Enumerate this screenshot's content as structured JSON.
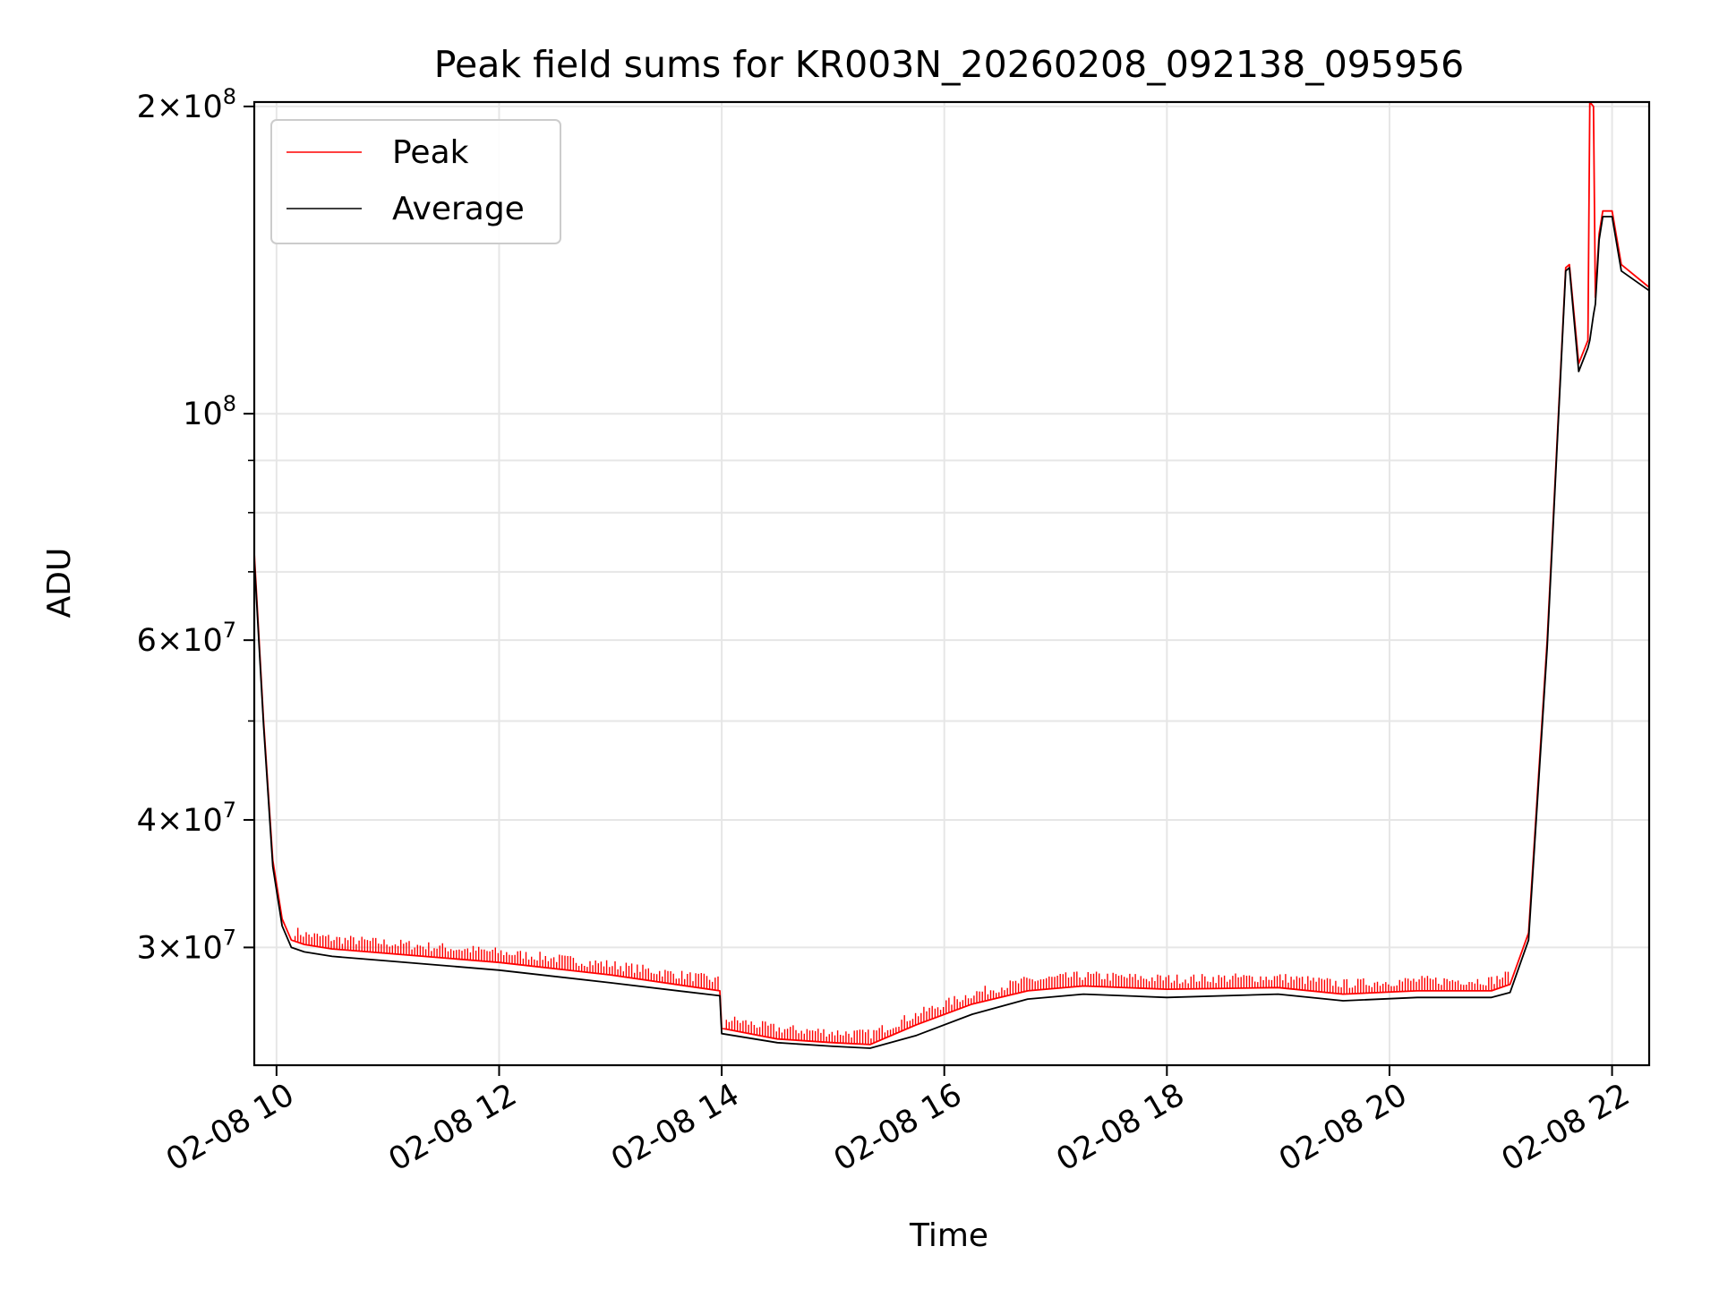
{
  "chart_data": {
    "type": "line",
    "title": "Peak field sums for KR003N_20260208_092138_095956",
    "xlabel": "Time",
    "ylabel": "ADU",
    "x_range": [
      "2026-02-08 09:48",
      "2026-02-08 22:20"
    ],
    "y_range": [
      23000000,
      202000000
    ],
    "y_scale": "log",
    "grid": true,
    "legend_position": "top-left",
    "x_ticks": [
      "2026-02-08 10:00",
      "2026-02-08 12:00",
      "2026-02-08 14:00",
      "2026-02-08 16:00",
      "2026-02-08 18:00",
      "2026-02-08 20:00",
      "2026-02-08 22:00"
    ],
    "x_tick_labels": [
      "02-08 10",
      "02-08 12",
      "02-08 14",
      "02-08 16",
      "02-08 18",
      "02-08 20",
      "02-08 22"
    ],
    "y_major_ticks": [
      {
        "value": 30000000,
        "mantissa": "3",
        "exp": "7"
      },
      {
        "value": 40000000,
        "mantissa": "4",
        "exp": "7"
      },
      {
        "value": 60000000,
        "mantissa": "6",
        "exp": "7"
      },
      {
        "value": 100000000,
        "mantissa": "",
        "exp": "8"
      },
      {
        "value": 200000000,
        "mantissa": "2",
        "exp": "8"
      }
    ],
    "y_minor_gridlines": [
      50000000,
      70000000,
      80000000,
      90000000
    ],
    "series": [
      {
        "name": "Peak",
        "color": "#ff0000",
        "spike_offset_fraction": 0.035,
        "x": [
          "2026-02-08 09:48",
          "2026-02-08 09:53",
          "2026-02-08 09:58",
          "2026-02-08 10:03",
          "2026-02-08 10:08",
          "2026-02-08 10:15",
          "2026-02-08 10:30",
          "2026-02-08 11:00",
          "2026-02-08 12:00",
          "2026-02-08 13:00",
          "2026-02-08 13:59",
          "2026-02-08 14:00",
          "2026-02-08 14:30",
          "2026-02-08 15:00",
          "2026-02-08 15:20",
          "2026-02-08 15:45",
          "2026-02-08 16:15",
          "2026-02-08 16:45",
          "2026-02-08 17:15",
          "2026-02-08 18:00",
          "2026-02-08 19:00",
          "2026-02-08 19:35",
          "2026-02-08 20:15",
          "2026-02-08 20:55",
          "2026-02-08 21:05",
          "2026-02-08 21:15",
          "2026-02-08 21:25",
          "2026-02-08 21:35",
          "2026-02-08 21:37",
          "2026-02-08 21:42",
          "2026-02-08 21:47",
          "2026-02-08 21:48",
          "2026-02-08 21:50",
          "2026-02-08 21:51",
          "2026-02-08 21:53",
          "2026-02-08 21:55",
          "2026-02-08 22:00",
          "2026-02-08 22:05",
          "2026-02-08 22:20"
        ],
        "y": [
          73000000,
          50000000,
          36500000,
          32000000,
          30500000,
          30200000,
          29900000,
          29600000,
          29000000,
          28200000,
          27200000,
          25000000,
          24400000,
          24200000,
          24100000,
          25200000,
          26400000,
          27200000,
          27500000,
          27300000,
          27400000,
          27000000,
          27200000,
          27200000,
          27600000,
          31000000,
          60000000,
          139000000,
          140000000,
          112000000,
          118000000,
          202000000,
          200000000,
          130000000,
          150000000,
          158000000,
          158000000,
          140000000,
          133000000
        ]
      },
      {
        "name": "Average",
        "color": "#000000",
        "x": [
          "2026-02-08 09:48",
          "2026-02-08 09:53",
          "2026-02-08 09:58",
          "2026-02-08 10:03",
          "2026-02-08 10:08",
          "2026-02-08 10:15",
          "2026-02-08 10:30",
          "2026-02-08 11:00",
          "2026-02-08 12:00",
          "2026-02-08 13:00",
          "2026-02-08 13:59",
          "2026-02-08 14:00",
          "2026-02-08 14:30",
          "2026-02-08 15:00",
          "2026-02-08 15:20",
          "2026-02-08 15:45",
          "2026-02-08 16:15",
          "2026-02-08 16:45",
          "2026-02-08 17:15",
          "2026-02-08 18:00",
          "2026-02-08 19:00",
          "2026-02-08 19:35",
          "2026-02-08 20:15",
          "2026-02-08 20:55",
          "2026-02-08 21:05",
          "2026-02-08 21:15",
          "2026-02-08 21:25",
          "2026-02-08 21:35",
          "2026-02-08 21:37",
          "2026-02-08 21:42",
          "2026-02-08 21:47",
          "2026-02-08 21:48",
          "2026-02-08 21:50",
          "2026-02-08 21:51",
          "2026-02-08 21:53",
          "2026-02-08 21:55",
          "2026-02-08 22:00",
          "2026-02-08 22:05",
          "2026-02-08 22:20"
        ],
        "y": [
          72000000,
          49500000,
          36000000,
          31500000,
          30000000,
          29700000,
          29400000,
          29100000,
          28500000,
          27700000,
          26900000,
          24700000,
          24200000,
          24000000,
          23900000,
          24600000,
          25800000,
          26700000,
          27000000,
          26800000,
          27000000,
          26600000,
          26800000,
          26800000,
          27100000,
          30500000,
          59000000,
          138000000,
          139000000,
          110000000,
          116000000,
          118000000,
          125000000,
          128000000,
          148000000,
          156000000,
          156000000,
          138000000,
          132000000
        ]
      }
    ]
  }
}
